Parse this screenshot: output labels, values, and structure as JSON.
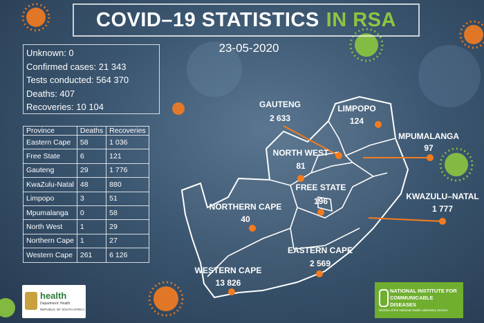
{
  "header": {
    "title": "COVID–19 STATISTICS",
    "title_highlight": "IN RSA",
    "date": "23-05-2020"
  },
  "summary": [
    "Unknown: 0",
    "Confirmed cases: 21 343",
    "Tests conducted: 564 370",
    "Deaths: 407",
    "Recoveries: 10 104"
  ],
  "table": {
    "columns": [
      "Province",
      "Deaths",
      "Recoveries"
    ],
    "rows": [
      [
        "Eastern Cape",
        "58",
        "1 036"
      ],
      [
        "Free State",
        "6",
        "121"
      ],
      [
        "Gauteng",
        "29",
        "1 776"
      ],
      [
        "KwaZulu-Natal",
        "48",
        "880"
      ],
      [
        "Limpopo",
        "3",
        "51"
      ],
      [
        "Mpumalanga",
        "0",
        "58"
      ],
      [
        "North West",
        "1",
        "29"
      ],
      [
        "Northern Cape",
        "1",
        "27"
      ],
      [
        "Western Cape",
        "261",
        "6 126"
      ]
    ]
  },
  "map": [
    {
      "province": "GAUTENG",
      "cases": "2 633"
    },
    {
      "province": "LIMPOPO",
      "cases": "124"
    },
    {
      "province": "MPUMALANGA",
      "cases": "97"
    },
    {
      "province": "NORTH WEST",
      "cases": "81"
    },
    {
      "province": "FREE STATE",
      "cases": "196"
    },
    {
      "province": "KWAZULU–NATAL",
      "cases": "1 777"
    },
    {
      "province": "NORTHERN CAPE",
      "cases": "40"
    },
    {
      "province": "EASTERN CAPE",
      "cases": "2 569"
    },
    {
      "province": "WESTERN CAPE",
      "cases": "13 826"
    }
  ],
  "logos": {
    "health": {
      "name": "health",
      "department": "Department: Health",
      "country": "REPUBLIC OF SOUTH AFRICA"
    },
    "nicd": {
      "name": "NATIONAL INSTITUTE FOR COMMUNICABLE DISEASES",
      "division": "Division of the National Health Laboratory Service"
    }
  }
}
